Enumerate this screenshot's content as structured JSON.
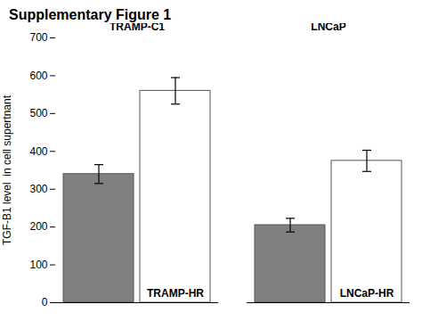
{
  "chart_data": {
    "type": "bar",
    "title": "Supplementary Figure 1",
    "ylabel": "TGF-B1 level  in cell supertnant",
    "categories": [
      "TRAMP-C1",
      "LNCaP"
    ],
    "series": [
      {
        "color": "#808080",
        "values": [
          340,
          205
        ],
        "errors": [
          25,
          18
        ]
      },
      {
        "color": "#ffffff",
        "values": [
          560,
          375
        ],
        "errors": [
          35,
          28
        ],
        "labels": [
          "TRAMP-HR",
          "LNCaP-HR"
        ]
      }
    ],
    "ylim": [
      0,
      700
    ],
    "yticks": [
      0,
      100,
      200,
      300,
      400,
      500,
      600,
      700
    ],
    "grid": false
  }
}
